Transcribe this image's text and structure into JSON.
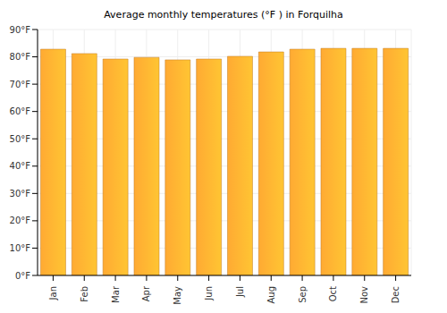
{
  "chart_data": {
    "type": "bar",
    "title": "Average monthly temperatures (°F ) in Forquilha",
    "categories": [
      "Jan",
      "Feb",
      "Mar",
      "Apr",
      "May",
      "Jun",
      "Jul",
      "Aug",
      "Sep",
      "Oct",
      "Nov",
      "Dec"
    ],
    "values": [
      82.8,
      81.2,
      79.2,
      79.8,
      78.9,
      79.2,
      80.2,
      81.8,
      82.8,
      83.1,
      83.1,
      83.1
    ],
    "color": "#ffaa33",
    "ylim": [
      0,
      90
    ],
    "yticks": [
      {
        "value": 0,
        "label": "0°F"
      },
      {
        "value": 10,
        "label": "10°F"
      },
      {
        "value": 20,
        "label": "20°F"
      },
      {
        "value": 30,
        "label": "30°F"
      },
      {
        "value": 40,
        "label": "40°F"
      },
      {
        "value": 50,
        "label": "50°F"
      },
      {
        "value": 60,
        "label": "60°F"
      },
      {
        "value": 70,
        "label": "70°F"
      },
      {
        "value": 80,
        "label": "80°F"
      },
      {
        "value": 90,
        "label": "90°F"
      }
    ],
    "grid": true
  }
}
